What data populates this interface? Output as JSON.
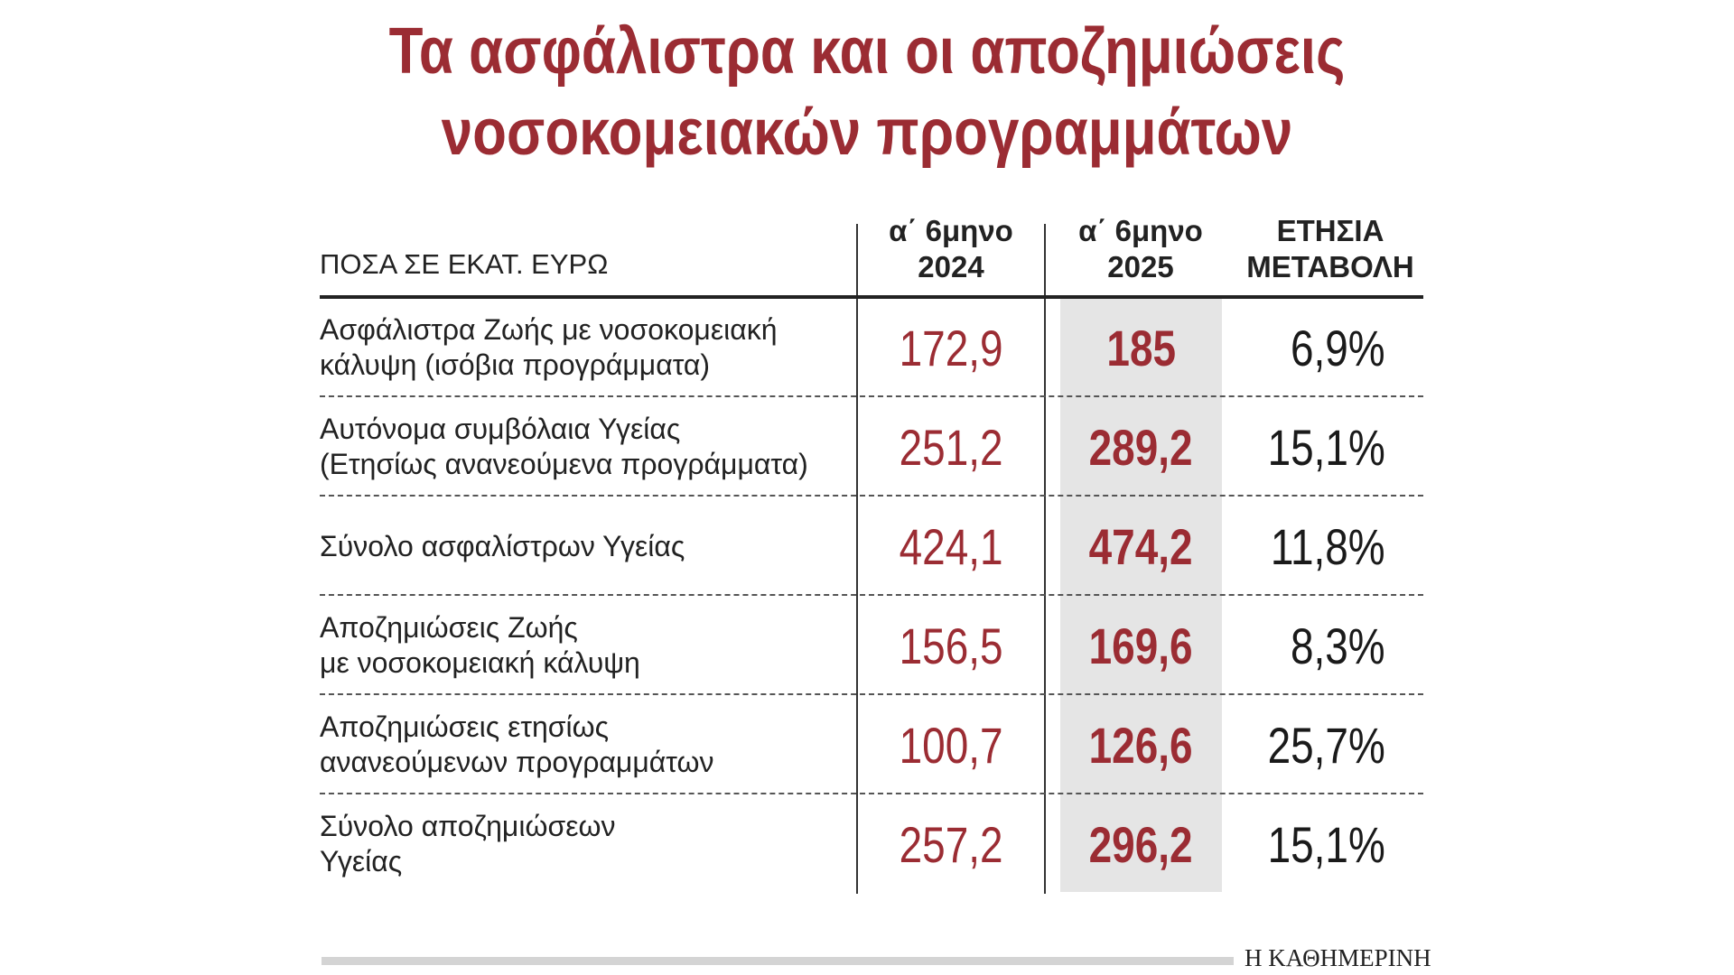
{
  "title": {
    "line1": "Τα ασφάλιστρα και οι αποζημιώσεις",
    "line2": "νοσοκομειακών προγραμμάτων"
  },
  "chart_data": {
    "type": "table",
    "title": "Τα ασφάλιστρα και οι αποζημιώσεις νοσοκομειακών προγραμμάτων",
    "unit_label": "ΠΟΣΑ ΣΕ ΕΚΑΤ. ΕΥΡΩ",
    "columns": [
      {
        "line1": "α΄ 6μηνο",
        "line2": "2024"
      },
      {
        "line1": "α΄ 6μηνο",
        "line2": "2025"
      },
      {
        "line1": "ΕΤΗΣΙΑ",
        "line2": "ΜΕΤΑΒΟΛΗ"
      }
    ],
    "rows": [
      {
        "label": [
          "Ασφάλιστρα Ζωής με νοσοκομειακή",
          "κάλυψη (ισόβια προγράμματα)"
        ],
        "h1_2024": "172,9",
        "h1_2025": "185",
        "change": "6,9%"
      },
      {
        "label": [
          "Αυτόνομα συμβόλαια Υγείας",
          "(Ετησίως ανανεούμενα προγράμματα)"
        ],
        "h1_2024": "251,2",
        "h1_2025": "289,2",
        "change": "15,1%"
      },
      {
        "label": [
          "Σύνολο ασφαλίστρων Υγείας"
        ],
        "h1_2024": "424,1",
        "h1_2025": "474,2",
        "change": "11,8%"
      },
      {
        "label": [
          "Αποζημιώσεις Ζωής",
          "με νοσοκομειακή κάλυψη"
        ],
        "h1_2024": "156,5",
        "h1_2025": "169,6",
        "change": "8,3%"
      },
      {
        "label": [
          "Αποζημιώσεις ετησίως",
          "ανανεούμενων προγραμμάτων"
        ],
        "h1_2024": "100,7",
        "h1_2025": "126,6",
        "change": "25,7%"
      },
      {
        "label": [
          "Σύνολο αποζημιώσεων",
          "Υγείας"
        ],
        "h1_2024": "257,2",
        "h1_2025": "296,2",
        "change": "15,1%"
      }
    ]
  },
  "credit": "Η ΚΑΘΗΜΕΡΙΝΗ",
  "colors": {
    "accent": "#9b2c33",
    "highlight_column": "#e5e5e5",
    "text": "#1a1a1a"
  }
}
